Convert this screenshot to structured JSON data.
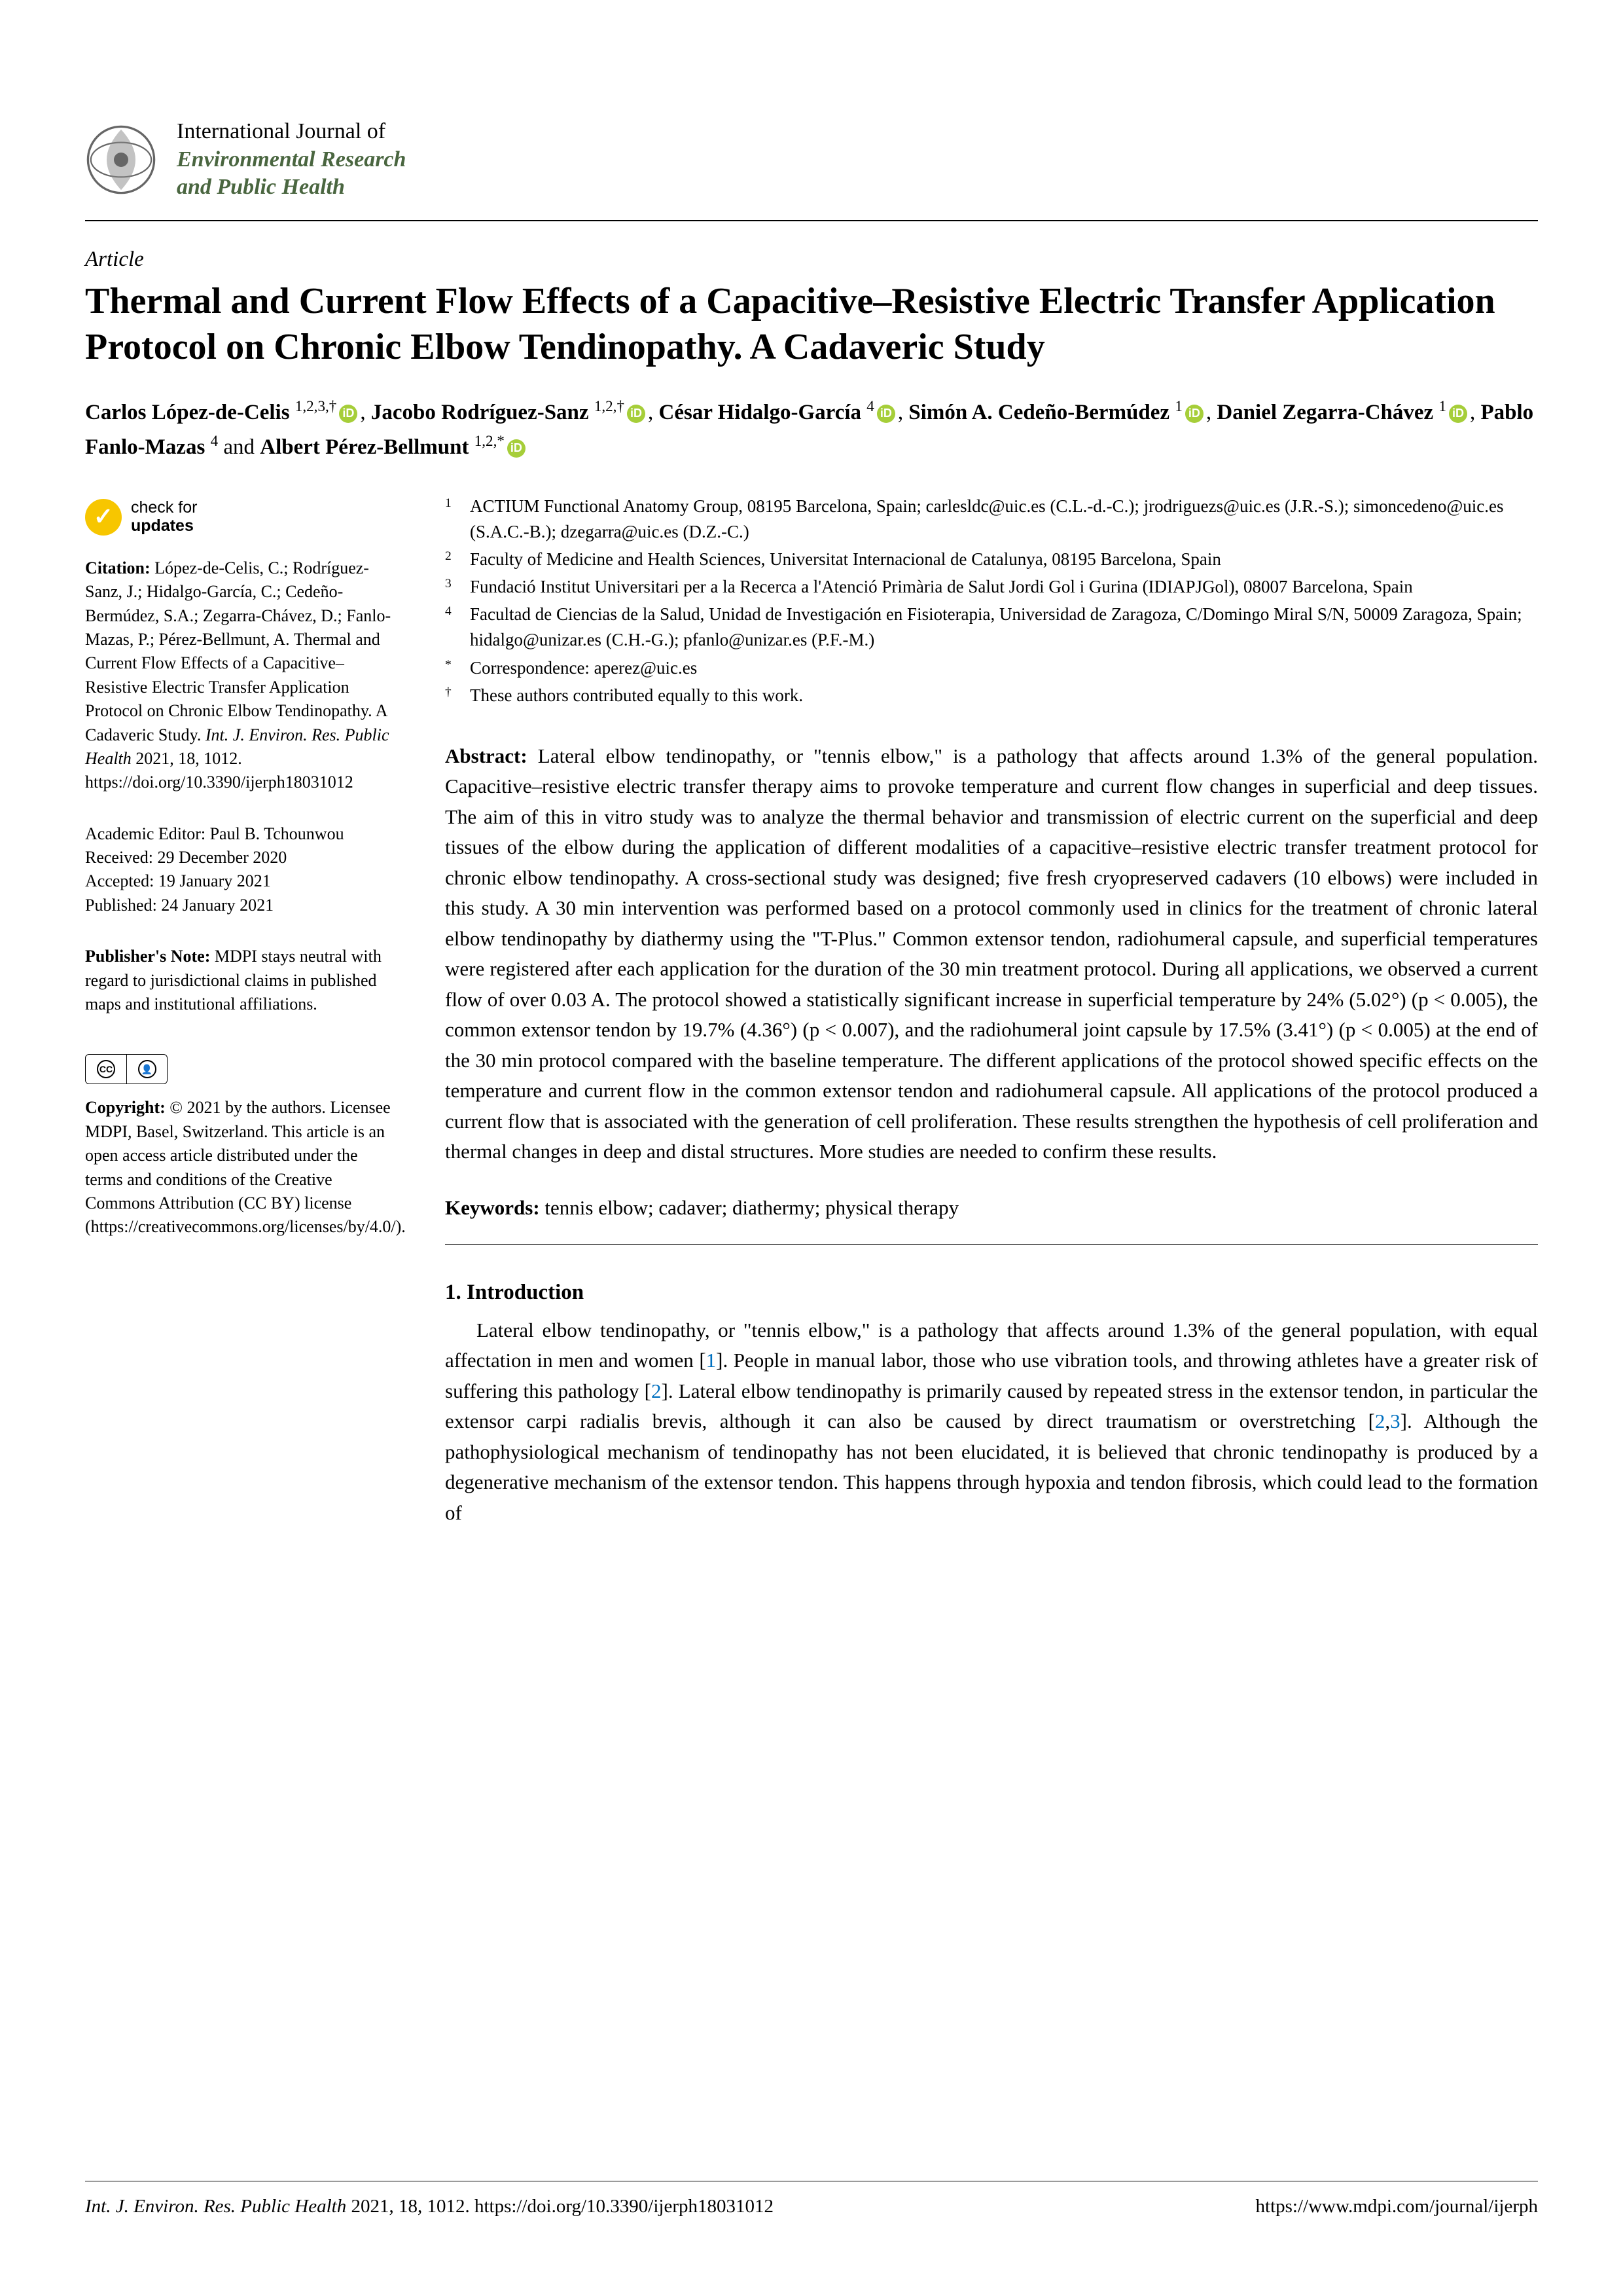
{
  "journal": {
    "line1": "International Journal of",
    "line2": "Environmental Research",
    "line3": "and Public Health"
  },
  "article_type": "Article",
  "title": "Thermal and Current Flow Effects of a Capacitive–Resistive Electric Transfer Application Protocol on Chronic Elbow Tendinopathy. A Cadaveric Study",
  "authors": [
    {
      "name": "Carlos López-de-Celis",
      "sup": "1,2,3,†",
      "orcid": true,
      "sep": ", "
    },
    {
      "name": "Jacobo Rodríguez-Sanz",
      "sup": "1,2,†",
      "orcid": true,
      "sep": ", "
    },
    {
      "name": "César Hidalgo-García",
      "sup": "4",
      "orcid": true,
      "sep": ", "
    },
    {
      "name": "Simón A. Cedeño-Bermúdez",
      "sup": "1",
      "orcid": true,
      "sep": ", "
    },
    {
      "name": "Daniel Zegarra-Chávez",
      "sup": "1",
      "orcid": true,
      "sep": ", "
    },
    {
      "name": "Pablo Fanlo-Mazas",
      "sup": "4",
      "orcid": false,
      "sep": " and "
    },
    {
      "name": "Albert Pérez-Bellmunt",
      "sup": "1,2,*",
      "orcid": true,
      "sep": ""
    }
  ],
  "affiliations": [
    {
      "num": "1",
      "text": "ACTIUM Functional Anatomy Group, 08195 Barcelona, Spain; carlesldc@uic.es (C.L.-d.-C.); jrodriguezs@uic.es (J.R.-S.); simoncedeno@uic.es (S.A.C.-B.); dzegarra@uic.es (D.Z.-C.)"
    },
    {
      "num": "2",
      "text": "Faculty of Medicine and Health Sciences, Universitat Internacional de Catalunya, 08195 Barcelona, Spain"
    },
    {
      "num": "3",
      "text": "Fundació Institut Universitari per a la Recerca a l'Atenció Primària de Salut Jordi Gol i Gurina (IDIAPJGol), 08007 Barcelona, Spain"
    },
    {
      "num": "4",
      "text": "Facultad de Ciencias de la Salud, Unidad de Investigación en Fisioterapia, Universidad de Zaragoza, C/Domingo Miral S/N, 50009 Zaragoza, Spain; hidalgo@unizar.es (C.H.-G.); pfanlo@unizar.es (P.F.-M.)"
    },
    {
      "num": "*",
      "text": "Correspondence: aperez@uic.es"
    },
    {
      "num": "†",
      "text": "These authors contributed equally to this work."
    }
  ],
  "abstract_label": "Abstract:",
  "abstract": " Lateral elbow tendinopathy, or \"tennis elbow,\" is a pathology that affects around 1.3% of the general population. Capacitive–resistive electric transfer therapy aims to provoke temperature and current flow changes in superficial and deep tissues. The aim of this in vitro study was to analyze the thermal behavior and transmission of electric current on the superficial and deep tissues of the elbow during the application of different modalities of a capacitive–resistive electric transfer treatment protocol for chronic elbow tendinopathy. A cross-sectional study was designed; five fresh cryopreserved cadavers (10 elbows) were included in this study. A 30 min intervention was performed based on a protocol commonly used in clinics for the treatment of chronic lateral elbow tendinopathy by diathermy using the \"T-Plus.\" Common extensor tendon, radiohumeral capsule, and superficial temperatures were registered after each application for the duration of the 30 min treatment protocol. During all applications, we observed a current flow of over 0.03 A. The protocol showed a statistically significant increase in superficial temperature by 24% (5.02°) (p < 0.005), the common extensor tendon by 19.7% (4.36°) (p < 0.007), and the radiohumeral joint capsule by 17.5% (3.41°) (p < 0.005) at the end of the 30 min protocol compared with the baseline temperature. The different applications of the protocol showed specific effects on the temperature and current flow in the common extensor tendon and radiohumeral capsule. All applications of the protocol produced a current flow that is associated with the generation of cell proliferation. These results strengthen the hypothesis of cell proliferation and thermal changes in deep and distal structures. More studies are needed to confirm these results.",
  "keywords_label": "Keywords:",
  "keywords": " tennis elbow; cadaver; diathermy; physical therapy",
  "section1_heading": "1. Introduction",
  "section1_body_parts": {
    "p1": "Lateral elbow tendinopathy, or \"tennis elbow,\" is a pathology that affects around 1.3% of the general population, with equal affectation in men and women [",
    "r1": "1",
    "p2": "]. People in manual labor, those who use vibration tools, and throwing athletes have a greater risk of suffering this pathology [",
    "r2": "2",
    "p3": "]. Lateral elbow tendinopathy is primarily caused by repeated stress in the extensor tendon, in particular the extensor carpi radialis brevis, although it can also be caused by direct traumatism or overstretching [",
    "r3": "2",
    "c1": ",",
    "r4": "3",
    "p4": "]. Although the pathophysiological mechanism of tendinopathy has not been elucidated, it is believed that chronic tendinopathy is produced by a degenerative mechanism of the extensor tendon. This happens through hypoxia and tendon fibrosis, which could lead to the formation of"
  },
  "sidebar": {
    "check_line1": "check for",
    "check_line2": "updates",
    "citation_label": "Citation:",
    "citation": " López-de-Celis, C.; Rodríguez-Sanz, J.; Hidalgo-García, C.; Cedeño-Bermúdez, S.A.; Zegarra-Chávez, D.; Fanlo-Mazas, P.; Pérez-Bellmunt, A. Thermal and Current Flow Effects of a Capacitive–Resistive Electric Transfer Application Protocol on Chronic Elbow Tendinopathy. A Cadaveric Study. ",
    "citation_journal": "Int. J. Environ. Res. Public Health",
    "citation_tail": " 2021, 18, 1012. https://doi.org/10.3390/ijerph18031012",
    "editor": "Academic Editor: Paul B. Tchounwou",
    "received": "Received: 29 December 2020",
    "accepted": "Accepted: 19 January 2021",
    "published": "Published: 24 January 2021",
    "pubnote_label": "Publisher's Note:",
    "pubnote": " MDPI stays neutral with regard to jurisdictional claims in published maps and institutional affiliations.",
    "cc_label": "CC",
    "by_label": "BY",
    "copyright_label": "Copyright:",
    "copyright": " © 2021 by the authors. Licensee MDPI, Basel, Switzerland. This article is an open access article distributed under the terms and conditions of the Creative Commons Attribution (CC BY) license (https://creativecommons.org/licenses/by/4.0/)."
  },
  "footer": {
    "left_journal": "Int. J. Environ. Res. Public Health",
    "left_tail": " 2021, 18, 1012. https://doi.org/10.3390/ijerph18031012",
    "right": "https://www.mdpi.com/journal/ijerph"
  },
  "colors": {
    "journal_green": "#4a6640",
    "orcid_green": "#a6ce39",
    "link_blue": "#0070c0",
    "check_yellow": "#f7c600"
  }
}
